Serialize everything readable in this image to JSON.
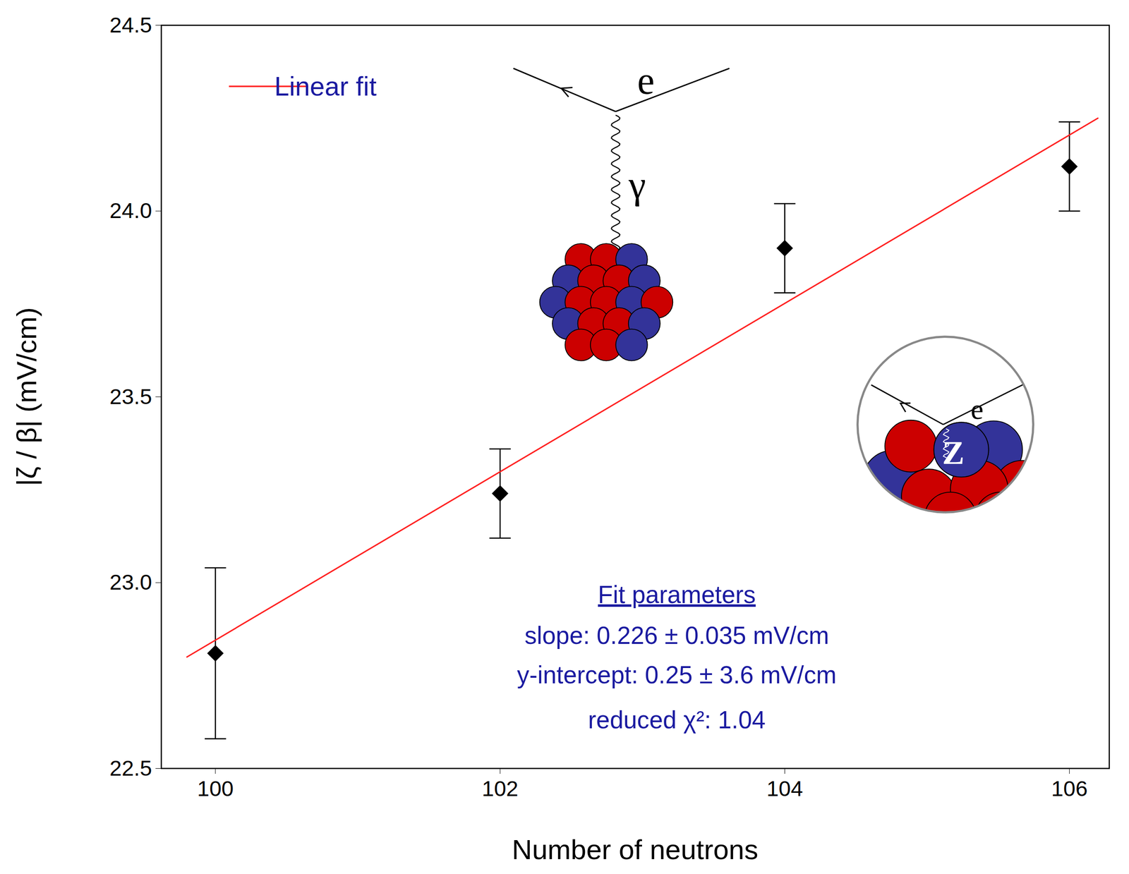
{
  "chart_data": {
    "type": "scatter",
    "x_label": "Number of neutrons",
    "y_label": "|ζ / β| (mV/cm)",
    "xlim": [
      99.62,
      106.28
    ],
    "ylim": [
      22.5,
      24.5
    ],
    "xticks": [
      100,
      102,
      104,
      106
    ],
    "yticks": [
      22.5,
      {
        "value": 23,
        "label": "23.0"
      },
      23.5,
      {
        "value": 24,
        "label": "24.0"
      },
      24.5
    ],
    "legend": "top-left",
    "series": [
      {
        "type": "scatter",
        "x": [
          100,
          102,
          104,
          106
        ],
        "values": [
          22.81,
          23.24,
          23.9,
          24.12
        ],
        "errors": [
          0.23,
          0.12,
          0.12,
          0.12
        ],
        "color": "#000000",
        "marker": "diamond"
      },
      {
        "name": "Linear fit",
        "type": "line",
        "x": [
          99.8,
          106.2
        ],
        "values": [
          22.8,
          24.25
        ],
        "color": "#ff2020",
        "line_style": "solid"
      }
    ],
    "annotations": {
      "fit_parameters": {
        "title": "Fit parameters",
        "lines": [
          "slope: 0.226 ± 0.035 mV/cm",
          "y-intercept: 0.25 ± 3.6 mV/cm",
          "reduced χ²: 1.04"
        ]
      },
      "diagram_labels": [
        "e",
        "γ",
        "e",
        "Z"
      ]
    }
  }
}
